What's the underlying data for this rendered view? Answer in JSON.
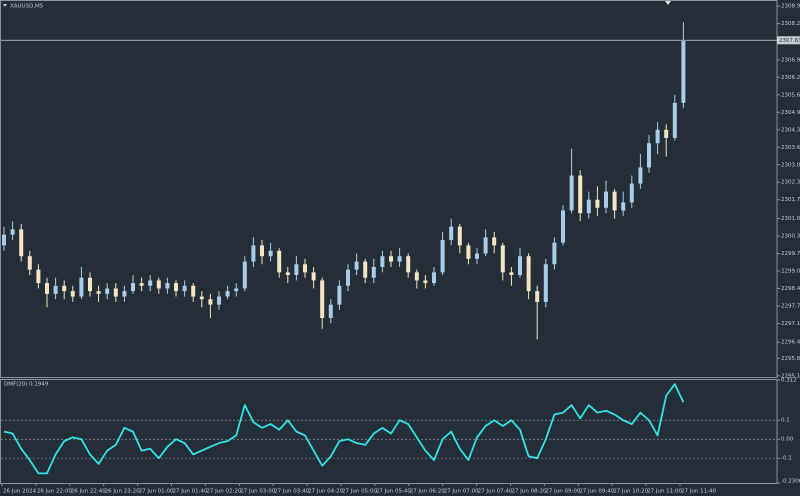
{
  "chart_data": [
    {
      "type": "candlestick",
      "title": "XAUUSD,M5",
      "open": [
        2300.0,
        2300.4,
        2300.6,
        2299.6,
        2299.1,
        2298.6,
        2298.2,
        2298.5,
        2298.3,
        2298.1,
        2298.8,
        2298.3,
        2298.2,
        2298.4,
        2298.1,
        2298.3,
        2298.6,
        2298.5,
        2298.7,
        2298.4,
        2298.6,
        2298.3,
        2298.5,
        2298.1,
        2298.0,
        2297.8,
        2298.1,
        2298.3,
        2298.4,
        2299.4,
        2300.0,
        2299.6,
        2299.8,
        2299.0,
        2298.9,
        2299.3,
        2299.0,
        2298.7,
        2297.3,
        2297.8,
        2298.5,
        2299.1,
        2299.4,
        2298.8,
        2299.2,
        2299.6,
        2299.4,
        2299.6,
        2299.0,
        2298.7,
        2298.6,
        2299.0,
        2300.2,
        2300.7,
        2300.0,
        2299.5,
        2299.7,
        2300.3,
        2300.0,
        2299.0,
        2298.9,
        2299.6,
        2298.3,
        2297.9,
        2299.3,
        2300.1,
        2301.3,
        2302.6,
        2301.2,
        2301.7,
        2301.4,
        2302.0,
        2301.3,
        2301.6,
        2302.3,
        2302.9,
        2303.8,
        2304.3,
        2304.0,
        2305.3
      ],
      "high": [
        2300.7,
        2300.9,
        2300.8,
        2299.8,
        2299.3,
        2298.8,
        2298.8,
        2298.7,
        2298.5,
        2299.2,
        2299.0,
        2298.5,
        2298.6,
        2298.6,
        2298.5,
        2298.9,
        2298.8,
        2298.9,
        2298.8,
        2298.8,
        2298.7,
        2298.7,
        2298.6,
        2298.3,
        2298.2,
        2298.3,
        2298.5,
        2298.6,
        2299.6,
        2300.3,
        2300.2,
        2300.1,
        2299.9,
        2299.2,
        2299.6,
        2299.5,
        2299.2,
        2298.8,
        2298.0,
        2298.7,
        2299.3,
        2299.7,
        2299.5,
        2299.5,
        2299.8,
        2299.8,
        2299.9,
        2299.7,
        2299.1,
        2298.9,
        2299.2,
        2300.5,
        2301.0,
        2300.8,
        2300.1,
        2299.9,
        2300.6,
        2300.5,
        2300.1,
        2299.2,
        2299.9,
        2299.7,
        2298.5,
        2299.5,
        2300.3,
        2301.5,
        2303.6,
        2302.8,
        2302.0,
        2302.2,
        2302.4,
        2302.1,
        2302.0,
        2302.6,
        2303.4,
        2304.1,
        2304.6,
        2304.5,
        2305.6,
        2308.3
      ],
      "low": [
        2299.8,
        2300.2,
        2299.4,
        2298.9,
        2298.4,
        2297.7,
        2298.0,
        2298.0,
        2297.9,
        2298.0,
        2298.1,
        2297.9,
        2298.0,
        2297.9,
        2297.9,
        2298.2,
        2298.3,
        2298.3,
        2298.2,
        2298.2,
        2298.1,
        2298.1,
        2297.9,
        2297.7,
        2297.3,
        2297.6,
        2298.0,
        2298.1,
        2298.3,
        2299.2,
        2299.3,
        2299.4,
        2298.8,
        2298.6,
        2298.7,
        2298.8,
        2298.4,
        2296.9,
        2297.1,
        2297.6,
        2298.3,
        2298.9,
        2298.6,
        2298.6,
        2299.0,
        2299.2,
        2299.2,
        2298.8,
        2298.4,
        2298.4,
        2298.5,
        2298.9,
        2300.0,
        2299.7,
        2299.3,
        2299.3,
        2299.6,
        2299.7,
        2298.7,
        2298.5,
        2298.8,
        2298.0,
        2296.5,
        2297.7,
        2299.1,
        2300.0,
        2301.2,
        2300.9,
        2301.0,
        2301.1,
        2301.2,
        2301.0,
        2301.1,
        2301.4,
        2302.1,
        2302.7,
        2303.4,
        2303.3,
        2303.9,
        2305.1
      ],
      "close": [
        2300.4,
        2300.6,
        2299.6,
        2299.1,
        2298.6,
        2298.2,
        2298.5,
        2298.3,
        2298.1,
        2298.8,
        2298.3,
        2298.2,
        2298.4,
        2298.1,
        2298.3,
        2298.6,
        2298.5,
        2298.7,
        2298.4,
        2298.6,
        2298.3,
        2298.5,
        2298.1,
        2298.0,
        2297.8,
        2298.1,
        2298.3,
        2298.4,
        2299.4,
        2300.0,
        2299.6,
        2299.8,
        2299.0,
        2298.9,
        2299.3,
        2299.0,
        2298.7,
        2297.3,
        2297.8,
        2298.5,
        2299.1,
        2299.4,
        2298.8,
        2299.2,
        2299.6,
        2299.4,
        2299.6,
        2299.0,
        2298.7,
        2298.6,
        2299.0,
        2300.2,
        2300.7,
        2300.0,
        2299.5,
        2299.7,
        2300.3,
        2300.0,
        2299.0,
        2298.9,
        2299.6,
        2298.3,
        2297.9,
        2299.3,
        2300.1,
        2301.3,
        2302.6,
        2301.2,
        2301.7,
        2301.4,
        2302.0,
        2301.3,
        2301.6,
        2302.3,
        2302.9,
        2303.8,
        2304.3,
        2304.0,
        2305.3,
        2307.6
      ],
      "up_color": "#a9cde8",
      "down_color": "#f3e4c2",
      "ylim": [
        2295.07,
        2309.09
      ],
      "yticks": [
        {
          "value": 2308.9,
          "label": "2308.90"
        },
        {
          "value": 2308.25,
          "label": "2308.25"
        },
        {
          "value": 2306.9,
          "label": "2306.90"
        },
        {
          "value": 2306.25,
          "label": "2306.25"
        },
        {
          "value": 2305.6,
          "label": "2305.60"
        },
        {
          "value": 2304.95,
          "label": "2304.95"
        },
        {
          "value": 2304.3,
          "label": "2304.30"
        },
        {
          "value": 2303.65,
          "label": "2303.65"
        },
        {
          "value": 2303.0,
          "label": "2303.00"
        },
        {
          "value": 2302.35,
          "label": "2302.35"
        },
        {
          "value": 2301.7,
          "label": "2301.70"
        },
        {
          "value": 2301.0,
          "label": "2301.00"
        },
        {
          "value": 2300.35,
          "label": "2300.35"
        },
        {
          "value": 2299.7,
          "label": "2299.70"
        },
        {
          "value": 2299.05,
          "label": "2299.05"
        },
        {
          "value": 2298.4,
          "label": "2298.40"
        },
        {
          "value": 2297.75,
          "label": "2297.75"
        },
        {
          "value": 2297.1,
          "label": "2297.10"
        },
        {
          "value": 2296.4,
          "label": "2296.40"
        },
        {
          "value": 2295.8,
          "label": "2295.80"
        },
        {
          "value": 2295.15,
          "label": "2295.15"
        }
      ],
      "price_line": {
        "value": 2307.63,
        "label": "2307.63"
      },
      "time_labels": [
        "26 Jun 2024",
        "26 Jun 22:00",
        "26 Jun 22:40",
        "26 Jun 23:20",
        "27 Jun 01:00",
        "27 Jun 01:40",
        "27 Jun 02:20",
        "27 Jun 03:00",
        "27 Jun 03:40",
        "27 Jun 04:20",
        "27 Jun 05:00",
        "27 Jun 05:40",
        "27 Jun 06:20",
        "27 Jun 07:00",
        "27 Jun 07:40",
        "27 Jun 08:20",
        "27 Jun 09:00",
        "27 Jun 09:40",
        "27 Jun 10:20",
        "27 Jun 11:00",
        "27 Jun 11:40"
      ]
    },
    {
      "type": "line",
      "title": "DMF(20) 0.1949",
      "color": "#2fe3e6",
      "values": [
        0.04,
        0.03,
        -0.05,
        -0.11,
        -0.18,
        -0.18,
        -0.08,
        -0.01,
        0.01,
        0,
        -0.08,
        -0.13,
        -0.06,
        -0.03,
        0.06,
        0.04,
        -0.06,
        -0.05,
        -0.1,
        -0.04,
        0,
        -0.02,
        -0.08,
        -0.06,
        -0.04,
        -0.02,
        -0.01,
        0.02,
        0.18,
        0.09,
        0.06,
        0.08,
        0.05,
        0.1,
        0.04,
        0.02,
        -0.06,
        -0.14,
        -0.09,
        -0.01,
        0,
        -0.02,
        -0.03,
        0.03,
        0.06,
        0.03,
        0.1,
        0.08,
        0.01,
        -0.06,
        -0.11,
        0,
        0.04,
        -0.05,
        -0.11,
        0.01,
        0.07,
        0.1,
        0.07,
        0.1,
        0.05,
        -0.09,
        -0.1,
        0,
        0.13,
        0.14,
        0.18,
        0.11,
        0.18,
        0.14,
        0.15,
        0.13,
        0.1,
        0.08,
        0.14,
        0.1,
        0.02,
        0.23,
        0.29,
        0.1949
      ],
      "ylim": [
        -0.2306,
        0.312
      ],
      "yticks": [
        0.312,
        0.1,
        {
          "value": 0,
          "label": "0.00"
        },
        -0.1,
        -0.2306
      ],
      "levels": [
        0.1,
        0,
        -0.1
      ]
    }
  ]
}
